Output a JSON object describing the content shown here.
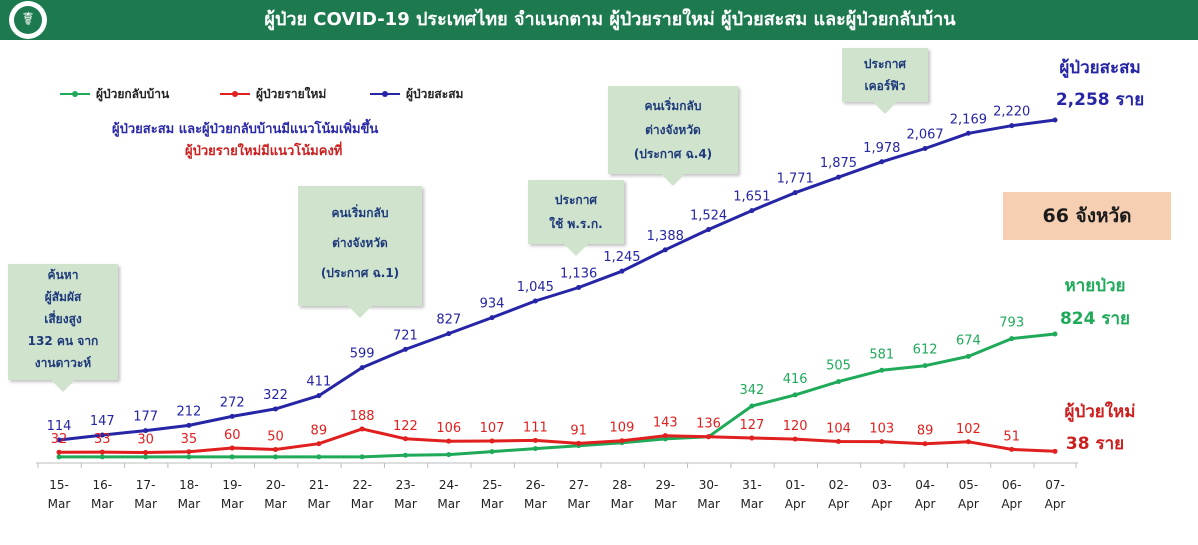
{
  "header": {
    "title": "ผู้ป่วย COVID-19 ประเทศไทย จำแนกตาม ผู้ป่วยรายใหม่ ผู้ป่วยสะสม  และผู้ป่วยกลับบ้าน"
  },
  "logo": {
    "icon": "moph-emblem-icon"
  },
  "legend": [
    {
      "label": "ผู้ป่วยกลับบ้าน",
      "color": "#1faa5a"
    },
    {
      "label": "ผู้ป่วยรายใหม่",
      "color": "#e01f1f"
    },
    {
      "label": "ผู้ป่วยสะสม",
      "color": "#2525a6"
    }
  ],
  "notes": {
    "trend_cumulative": "ผู้ป่วยสะสม  และผู้ป่วยกลับบ้านมีแนวโน้มเพิ่มขึ้น",
    "trend_new": "ผู้ป่วยรายใหม่มีแนวโน้มคงที่"
  },
  "callouts": [
    {
      "lines": [
        "ค้นหา",
        "ผู้สัมผัส",
        "เสี่ยงสูง",
        "132 คน จาก",
        "งานดาวะห์"
      ]
    },
    {
      "lines": [
        "คนเริ่มกลับ",
        "ต่างจังหวัด",
        "(ประกาศ ฉ.1)"
      ]
    },
    {
      "lines": [
        "ประกาศ",
        "ใช้  พ.ร.ก."
      ]
    },
    {
      "lines": [
        "คนเริ่มกลับ",
        "ต่างจังหวัด",
        "(ประกาศ ฉ.4)"
      ]
    },
    {
      "lines": [
        "ประกาศ",
        "เคอร์ฟิว"
      ]
    }
  ],
  "province_box": {
    "text": "66 จังหวัด"
  },
  "side_labels": {
    "cumulative_title": "ผู้ป่วยสะสม",
    "cumulative_value": "2,258 ราย",
    "recovered_title": "หายป่วย",
    "recovered_value": "824 ราย",
    "new_title": "ผู้ป่วยใหม่",
    "new_value": "38 ราย"
  },
  "chart_data": {
    "type": "line",
    "x": [
      "15-Mar",
      "16-Mar",
      "17-Mar",
      "18-Mar",
      "19-Mar",
      "20-Mar",
      "21-Mar",
      "22-Mar",
      "23-Mar",
      "24-Mar",
      "25-Mar",
      "26-Mar",
      "27-Mar",
      "28-Mar",
      "29-Mar",
      "30-Mar",
      "31-Mar",
      "01-Apr",
      "02-Apr",
      "03-Apr",
      "04-Apr",
      "05-Apr",
      "06-Apr",
      "07-Apr"
    ],
    "x_ticks": [
      [
        "15-",
        "Mar"
      ],
      [
        "16-",
        "Mar"
      ],
      [
        "17-",
        "Mar"
      ],
      [
        "18-",
        "Mar"
      ],
      [
        "19-",
        "Mar"
      ],
      [
        "20-",
        "Mar"
      ],
      [
        "21-",
        "Mar"
      ],
      [
        "22-",
        "Mar"
      ],
      [
        "23-",
        "Mar"
      ],
      [
        "24-",
        "Mar"
      ],
      [
        "25-",
        "Mar"
      ],
      [
        "26-",
        "Mar"
      ],
      [
        "27-",
        "Mar"
      ],
      [
        "28-",
        "Mar"
      ],
      [
        "29-",
        "Mar"
      ],
      [
        "30-",
        "Mar"
      ],
      [
        "31-",
        "Mar"
      ],
      [
        "01-",
        "Apr"
      ],
      [
        "02-",
        "Apr"
      ],
      [
        "03-",
        "Apr"
      ],
      [
        "04-",
        "Apr"
      ],
      [
        "05-",
        "Apr"
      ],
      [
        "06-",
        "Apr"
      ],
      [
        "07-",
        "Apr"
      ]
    ],
    "series": [
      {
        "name": "ผู้ป่วยสะสม",
        "color": "#2525a6",
        "values": [
          114,
          147,
          177,
          212,
          272,
          322,
          411,
          599,
          721,
          827,
          934,
          1045,
          1136,
          1245,
          1388,
          1524,
          1651,
          1771,
          1875,
          1978,
          2067,
          2169,
          2220,
          2258
        ],
        "labels": [
          "114",
          "147",
          "177",
          "212",
          "272",
          "322",
          "411",
          "599",
          "721",
          "827",
          "934",
          "1,045",
          "1,136",
          "1,245",
          "1,388",
          "1,524",
          "1,651",
          "1,771",
          "1,875",
          "1,978",
          "2,067",
          "2,169",
          "2,220",
          ""
        ]
      },
      {
        "name": "ผู้ป่วยรายใหม่",
        "color": "#e01f1f",
        "values": [
          32,
          33,
          30,
          35,
          60,
          50,
          89,
          188,
          122,
          106,
          107,
          111,
          91,
          109,
          143,
          136,
          127,
          120,
          104,
          103,
          89,
          102,
          51,
          38
        ],
        "labels": [
          "32",
          "33",
          "30",
          "35",
          "60",
          "50",
          "89",
          "188",
          "122",
          "106",
          "107",
          "111",
          "91",
          "109",
          "143",
          "136",
          "127",
          "120",
          "104",
          "103",
          "89",
          "102",
          "51",
          ""
        ]
      },
      {
        "name": "ผู้ป่วยกลับบ้าน",
        "color": "#1faa5a",
        "values": [
          1,
          1,
          1,
          1,
          1,
          1,
          1,
          1,
          12,
          16,
          36,
          56,
          76,
          96,
          121,
          136,
          342,
          416,
          505,
          581,
          612,
          674,
          793,
          824
        ],
        "labels": [
          "",
          "",
          "",
          "",
          "",
          "",
          "",
          "",
          "",
          "",
          "",
          "",
          "",
          "",
          "",
          "",
          "342",
          "416",
          "505",
          "581",
          "612",
          "674",
          "793",
          ""
        ]
      }
    ],
    "ylim": [
      0,
      2258
    ],
    "grid": false,
    "legend_position": "top-left"
  }
}
